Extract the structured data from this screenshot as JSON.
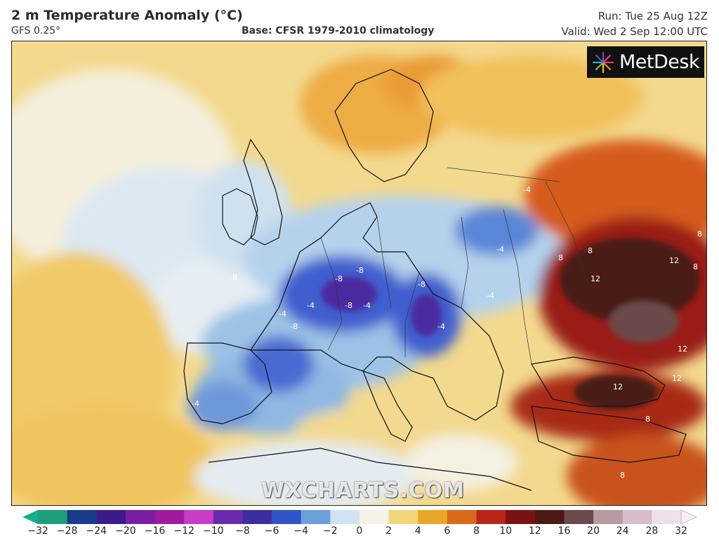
{
  "header": {
    "title": "2 m Temperature Anomaly (°C)",
    "model": "GFS 0.25°",
    "base": "Base: CFSR 1979-2010 climatology",
    "run": "Run: Tue 25 Aug 12Z",
    "valid": "Valid: Wed 2 Sep 12:00 UTC"
  },
  "logo": {
    "text": "MetDesk"
  },
  "watermark": "WXCHARTS.COM",
  "contour_labels": [
    "-8",
    "-8",
    "-8",
    "-8",
    "-8",
    "-8",
    "-4",
    "-4",
    "-4",
    "-4",
    "-4",
    "-4",
    "-4",
    "-4",
    "8",
    "8",
    "8",
    "8",
    "8",
    "8",
    "12",
    "12",
    "12",
    "12",
    "12"
  ],
  "colorbar": {
    "ticks": [
      "−32",
      "−28",
      "−24",
      "−20",
      "−16",
      "−12",
      "−10",
      "−8",
      "−6",
      "−4",
      "−2",
      "0",
      "2",
      "4",
      "6",
      "8",
      "10",
      "12",
      "16",
      "20",
      "24",
      "28",
      "32"
    ],
    "colors": [
      "#1e9e7a",
      "#1a3a8a",
      "#3b1a8a",
      "#7b1fa2",
      "#a01aa0",
      "#c83cc8",
      "#6a2ab0",
      "#3b2fa0",
      "#2f55c8",
      "#6aa0dc",
      "#cfe3f2",
      "#f4f1e6",
      "#f2d57a",
      "#e9a62a",
      "#d9691a",
      "#b8261a",
      "#7a1212",
      "#4a1a14",
      "#6a4a4a",
      "#b89aa0",
      "#d8bccc",
      "#eee0ea"
    ]
  },
  "colors": {
    "cold_core": "#4a2fa0",
    "cold": "#2f55c8",
    "cool": "#a9cbe8",
    "neutral": "#f4f1e6",
    "warm": "#f2c65a",
    "hot": "#d9691a",
    "very_hot": "#4a1414"
  }
}
